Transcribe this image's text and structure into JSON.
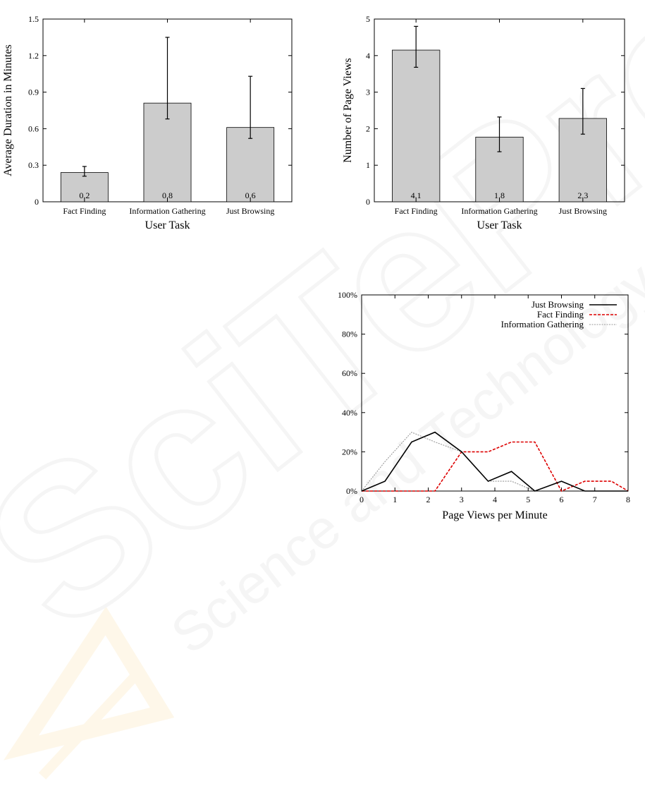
{
  "watermark": {
    "brand": "SciTePress",
    "tagline": "Science and Technology Publications"
  },
  "chart_data": [
    {
      "type": "bar",
      "categories": [
        "Fact Finding",
        "Information Gathering",
        "Just Browsing"
      ],
      "values": [
        0.24,
        0.81,
        0.61
      ],
      "value_labels": [
        "0.2",
        "0.8",
        "0.6"
      ],
      "error_low": [
        0.21,
        0.68,
        0.52
      ],
      "error_high": [
        0.29,
        1.35,
        1.03
      ],
      "title": "",
      "xlabel": "User Task",
      "ylabel": "Average Duration in Minutes",
      "ylim": [
        0,
        1.5
      ],
      "yticks": [
        0,
        0.3,
        0.6,
        0.9,
        1.2,
        1.5
      ],
      "ytick_labels": [
        "0",
        "0.3",
        "0.6",
        "0.9",
        "1.2",
        "1.5"
      ],
      "bar_color": "#cccccc",
      "grid": false
    },
    {
      "type": "bar",
      "categories": [
        "Fact Finding",
        "Information Gathering",
        "Just Browsing"
      ],
      "values": [
        4.15,
        1.77,
        2.28
      ],
      "value_labels": [
        "4.1",
        "1.8",
        "2.3"
      ],
      "error_low": [
        3.68,
        1.37,
        1.85
      ],
      "error_high": [
        4.8,
        2.32,
        3.1
      ],
      "title": "",
      "xlabel": "User Task",
      "ylabel": "Number of Page Views",
      "ylim": [
        0,
        5
      ],
      "yticks": [
        0,
        1,
        2,
        3,
        4,
        5
      ],
      "ytick_labels": [
        "0",
        "1",
        "2",
        "3",
        "4",
        "5"
      ],
      "bar_color": "#cccccc",
      "grid": false
    },
    {
      "type": "line",
      "title": "",
      "xlabel": "Page Views per Minute",
      "ylabel": "",
      "xlim": [
        0,
        8
      ],
      "ylim": [
        0,
        100
      ],
      "xticks": [
        0,
        1,
        2,
        3,
        4,
        5,
        6,
        7,
        8
      ],
      "xtick_labels": [
        "0",
        "1",
        "2",
        "3",
        "4",
        "5",
        "6",
        "7",
        "8"
      ],
      "yticks": [
        0,
        20,
        40,
        60,
        80,
        100
      ],
      "ytick_labels": [
        "0%",
        "20%",
        "40%",
        "60%",
        "80%",
        "100%"
      ],
      "legend_position": "top-right",
      "grid": false,
      "series": [
        {
          "name": "Just Browsing",
          "color": "#000000",
          "style": "solid",
          "x": [
            0,
            0.7,
            1.5,
            2.2,
            3,
            3.8,
            4.5,
            5.2,
            6,
            6.7,
            7.5,
            8
          ],
          "y": [
            0,
            5,
            25,
            30,
            20,
            5,
            10,
            0,
            5,
            0,
            0,
            0
          ]
        },
        {
          "name": "Fact Finding",
          "color": "#dd0000",
          "style": "dashed",
          "x": [
            0,
            0.7,
            1.5,
            2.2,
            3,
            3.8,
            4.5,
            5.2,
            6,
            6.7,
            7.5,
            8
          ],
          "y": [
            0,
            0,
            0,
            0,
            20,
            20,
            25,
            25,
            0,
            5,
            5,
            0
          ]
        },
        {
          "name": "Information Gathering",
          "color": "#999999",
          "style": "dotted",
          "x": [
            0,
            0.7,
            1.5,
            2.2,
            3,
            3.8,
            4.5,
            5.2
          ],
          "y": [
            0,
            15,
            30,
            25,
            20,
            5,
            5,
            0
          ]
        }
      ]
    }
  ]
}
